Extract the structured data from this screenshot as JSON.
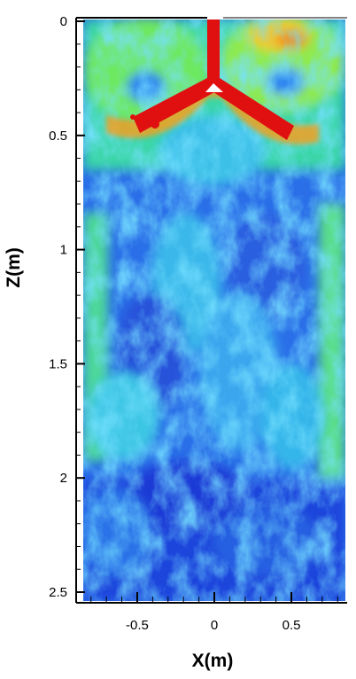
{
  "chart_data": {
    "type": "heatmap",
    "title": "",
    "xlabel": "X(m)",
    "ylabel": "Z(m)",
    "xlim": [
      -0.85,
      0.85
    ],
    "ylim": [
      0,
      2.5
    ],
    "y_inverted": true,
    "x_ticks": [
      {
        "value": -0.5,
        "label": "-0.5"
      },
      {
        "value": 0,
        "label": "0"
      },
      {
        "value": 0.5,
        "label": "0.5"
      }
    ],
    "y_ticks": [
      {
        "value": 0,
        "label": "0"
      },
      {
        "value": 0.5,
        "label": "0.5"
      },
      {
        "value": 1,
        "label": "1"
      },
      {
        "value": 1.5,
        "label": "1.5"
      },
      {
        "value": 2,
        "label": "2"
      },
      {
        "value": 2.5,
        "label": "2.5"
      }
    ],
    "colormap": [
      "#1f3fdc",
      "#2f86f0",
      "#35d8e8",
      "#4de87a",
      "#c8f03a",
      "#f0e030",
      "#f08a20",
      "#e01010"
    ],
    "grid": false,
    "legend": "none",
    "features": {
      "jet_color": "#e01010",
      "vortex_centers": [
        {
          "x": -0.33,
          "z": 0.28
        },
        {
          "x": 0.33,
          "z": 0.27
        }
      ]
    }
  }
}
